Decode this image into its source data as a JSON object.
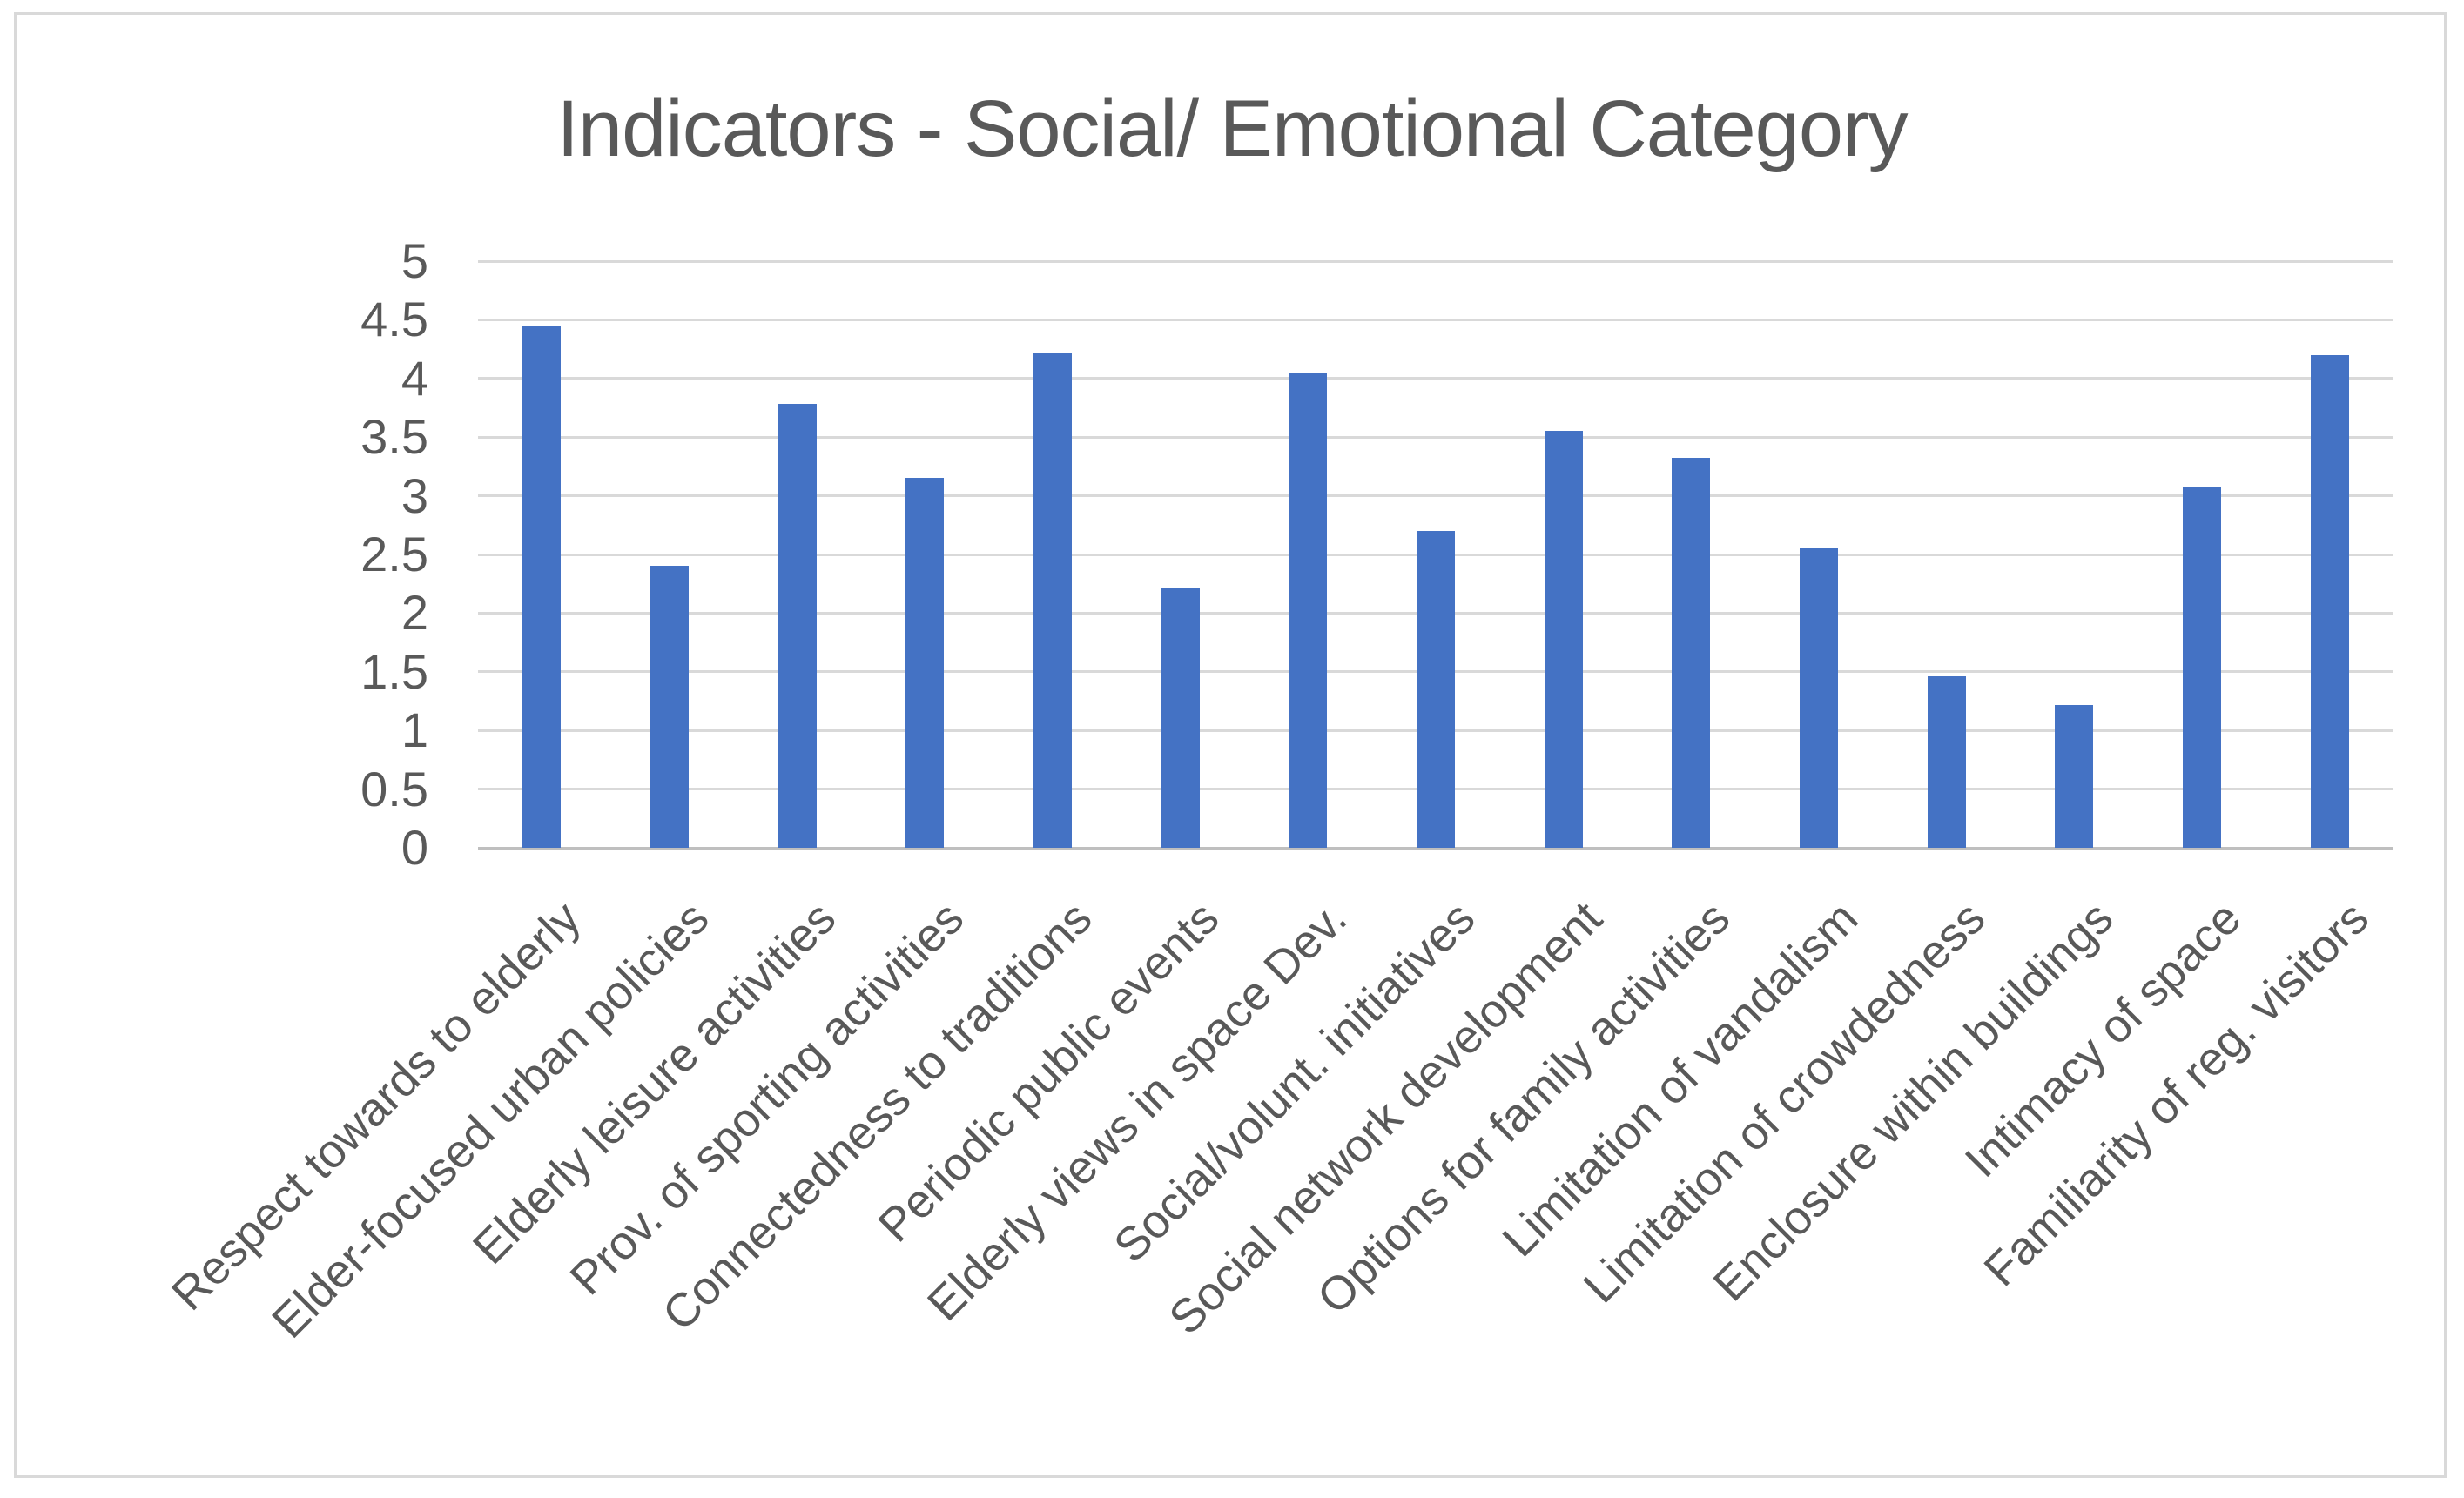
{
  "chart_data": {
    "type": "bar",
    "title": "Indicators - Social/ Emotional Category",
    "categories": [
      "Respect towards to elderly",
      "Elder-focused urban policies",
      "Elderly leisure activities",
      "Prov. of sporting activities",
      "Connectedness to traditions",
      "Periodic public events",
      "Elderly views in space Dev.",
      "Social/volunt. initiatives",
      "Social network development",
      "Options for family activities",
      "Limitation of vandalism",
      "Limitation of crowdedness",
      "Enclosure within buildings",
      "Intimacy of space",
      "Familiarity of reg. visitors"
    ],
    "values": [
      4.45,
      2.4,
      3.78,
      3.15,
      4.22,
      2.22,
      4.05,
      2.7,
      3.55,
      3.32,
      2.55,
      1.46,
      1.22,
      3.07,
      4.2
    ],
    "xlabel": "",
    "ylabel": "",
    "ylim": [
      0,
      5
    ],
    "ytick_step": 0.5,
    "ytick_labels": [
      "0",
      "0.5",
      "1",
      "1.5",
      "2",
      "2.5",
      "3",
      "3.5",
      "4",
      "4.5",
      "5"
    ],
    "grid": true,
    "legend": false,
    "bar_color": "#4472C4",
    "gridline_color": "#D9D9D9",
    "zero_line_color": "#BFBFBF",
    "text_color": "#595959"
  }
}
